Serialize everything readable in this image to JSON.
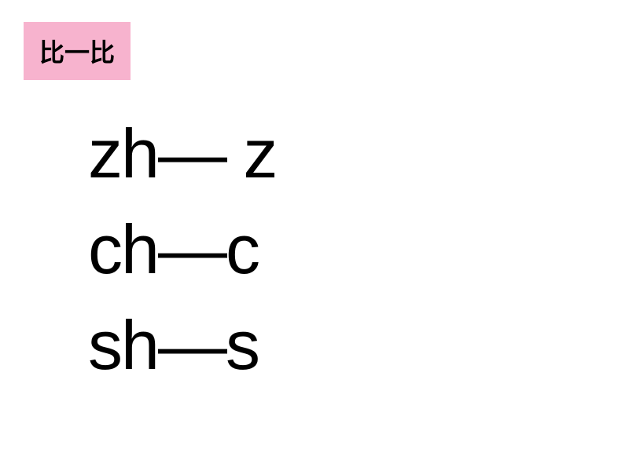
{
  "title": {
    "text": "比一比",
    "background_color": "#f7b3ce",
    "text_color": "#000000",
    "font_size": 32,
    "font_weight": "bold"
  },
  "comparisons": {
    "rows": [
      {
        "text": "zh— z"
      },
      {
        "text": "ch—c"
      },
      {
        "text": "sh—s"
      }
    ],
    "text_color": "#000000",
    "font_size": 88
  },
  "background_color": "#ffffff"
}
